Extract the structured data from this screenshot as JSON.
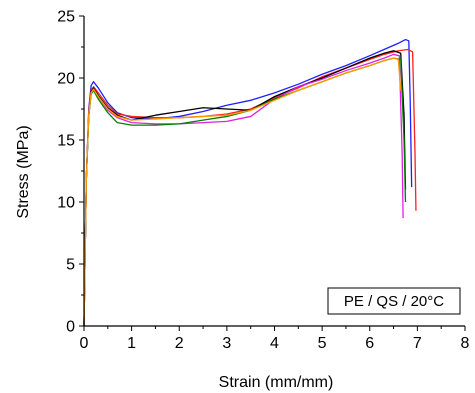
{
  "chart_data": {
    "type": "line",
    "xlabel": "Strain (mm/mm)",
    "ylabel": "Stress (MPa)",
    "xlim": [
      0,
      8
    ],
    "ylim": [
      0,
      25
    ],
    "xticks": [
      0,
      1,
      2,
      3,
      4,
      5,
      6,
      7,
      8
    ],
    "yticks": [
      0,
      5,
      10,
      15,
      20,
      25
    ],
    "grid": false,
    "annotation": "PE / QS / 20°C",
    "annotation_position": "bottom-right",
    "series": [
      {
        "color": "#1f1fff",
        "x": [
          0,
          0.02,
          0.05,
          0.1,
          0.15,
          0.2,
          0.3,
          0.5,
          0.7,
          1.0,
          1.5,
          2.0,
          2.5,
          3.0,
          3.5,
          4.0,
          4.5,
          5.0,
          5.5,
          6.0,
          6.3,
          6.6,
          6.75,
          6.82,
          6.85,
          6.88
        ],
        "y": [
          0,
          5,
          12,
          17.5,
          19.4,
          19.7,
          19.2,
          18.0,
          17.2,
          16.8,
          16.7,
          16.9,
          17.3,
          17.8,
          18.2,
          18.8,
          19.5,
          20.3,
          21.0,
          21.8,
          22.3,
          22.8,
          23.1,
          23.0,
          18,
          11.2
        ]
      },
      {
        "color": "#ff2020",
        "x": [
          0,
          0.02,
          0.05,
          0.1,
          0.15,
          0.2,
          0.3,
          0.5,
          0.7,
          1.0,
          1.5,
          2.0,
          2.5,
          3.0,
          3.5,
          4.0,
          4.5,
          5.0,
          5.5,
          6.0,
          6.3,
          6.6,
          6.8,
          6.9,
          6.95,
          6.97
        ],
        "y": [
          0,
          5,
          12,
          17.3,
          19.0,
          19.3,
          18.8,
          17.8,
          17.1,
          16.9,
          16.8,
          16.8,
          16.9,
          17.1,
          17.5,
          18.4,
          19.2,
          20.1,
          20.8,
          21.5,
          21.9,
          22.2,
          22.3,
          22.1,
          14,
          9.3
        ]
      },
      {
        "color": "#000000",
        "x": [
          0,
          0.02,
          0.05,
          0.1,
          0.15,
          0.2,
          0.3,
          0.5,
          0.7,
          1.0,
          1.5,
          2.0,
          2.5,
          3.0,
          3.5,
          4.0,
          4.5,
          5.0,
          5.5,
          6.0,
          6.3,
          6.5,
          6.65,
          6.72,
          6.75
        ],
        "y": [
          0,
          5,
          12,
          17.0,
          18.9,
          19.2,
          18.6,
          17.6,
          17.0,
          16.6,
          17.0,
          17.3,
          17.6,
          17.5,
          17.4,
          18.5,
          19.3,
          20.0,
          20.8,
          21.6,
          22.0,
          22.2,
          22.0,
          17,
          11
        ]
      },
      {
        "color": "#e020e0",
        "x": [
          0,
          0.02,
          0.05,
          0.1,
          0.15,
          0.2,
          0.3,
          0.5,
          0.7,
          1.0,
          1.5,
          2.0,
          2.5,
          3.0,
          3.5,
          4.0,
          4.5,
          5.0,
          5.5,
          6.0,
          6.3,
          6.5,
          6.62,
          6.68,
          6.7
        ],
        "y": [
          0,
          5,
          12,
          17.0,
          18.8,
          19.1,
          18.5,
          17.4,
          16.8,
          16.4,
          16.3,
          16.3,
          16.4,
          16.5,
          16.9,
          18.3,
          19.3,
          19.9,
          20.6,
          21.2,
          21.6,
          21.9,
          21.8,
          14,
          8.7
        ]
      },
      {
        "color": "#008000",
        "x": [
          0,
          0.02,
          0.05,
          0.1,
          0.15,
          0.2,
          0.3,
          0.5,
          0.7,
          1.0,
          1.5,
          2.0,
          2.5,
          3.0,
          3.5,
          4.0,
          4.5,
          5.0,
          5.5,
          6.0,
          6.3,
          6.5,
          6.65,
          6.72,
          6.75
        ],
        "y": [
          0,
          5,
          12,
          16.9,
          18.7,
          19.0,
          18.3,
          17.2,
          16.4,
          16.2,
          16.2,
          16.3,
          16.6,
          16.9,
          17.4,
          18.3,
          19.0,
          19.7,
          20.4,
          21.0,
          21.4,
          21.6,
          21.5,
          15,
          10
        ]
      },
      {
        "color": "#ff9900",
        "x": [
          0,
          0.02,
          0.05,
          0.1,
          0.15,
          0.2,
          0.3,
          0.5,
          0.7,
          1.0,
          1.5,
          2.0,
          2.5,
          3.0,
          3.5,
          4.0,
          4.5,
          5.0,
          5.5,
          6.0,
          6.3,
          6.5,
          6.6,
          6.65
        ],
        "y": [
          0,
          5,
          12,
          17.0,
          18.8,
          19.1,
          18.5,
          17.5,
          16.9,
          16.6,
          16.7,
          16.8,
          16.9,
          17.0,
          17.4,
          18.2,
          19.0,
          19.7,
          20.4,
          21.0,
          21.4,
          21.6,
          21.5,
          19
        ]
      }
    ]
  }
}
